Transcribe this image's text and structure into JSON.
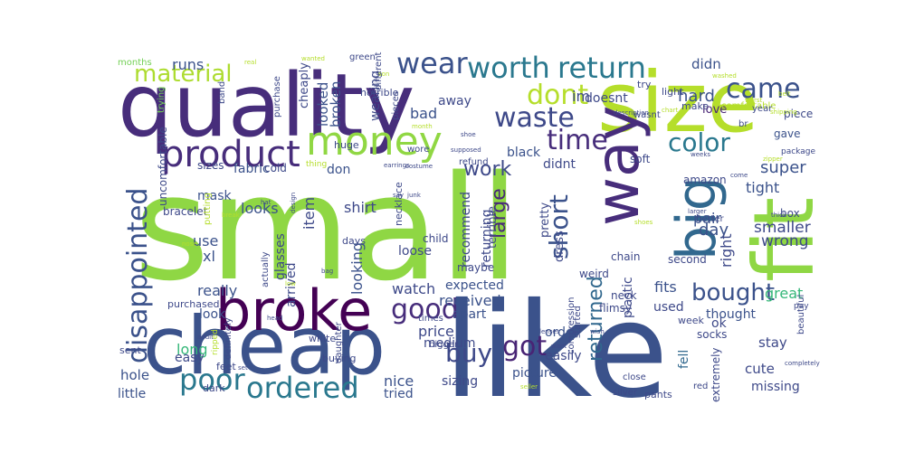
{
  "words": [
    {
      "text": "small",
      "color": "#8fd744"
    },
    {
      "text": "like",
      "color": "#3b528b"
    },
    {
      "text": "quality",
      "color": "#472d7b"
    },
    {
      "text": "size",
      "color": "#b5de2b"
    },
    {
      "text": "cheap",
      "color": "#3b528b"
    },
    {
      "text": "fit",
      "color": "#8fd744"
    },
    {
      "text": "broke",
      "color": "#440154"
    },
    {
      "text": "way",
      "color": "#472d7b"
    },
    {
      "text": "big",
      "color": "#31688e"
    },
    {
      "text": "money",
      "color": "#90d743"
    },
    {
      "text": "product",
      "color": "#472d7b"
    },
    {
      "text": "disappointed",
      "color": "#3b528b"
    },
    {
      "text": "worth",
      "color": "#2a788e"
    },
    {
      "text": "return",
      "color": "#2a788e"
    },
    {
      "text": "wear",
      "color": "#3b528b"
    },
    {
      "text": "came",
      "color": "#3b528b"
    },
    {
      "text": "material",
      "color": "#addc30"
    },
    {
      "text": "dont",
      "color": "#b5de2b"
    },
    {
      "text": "waste",
      "color": "#3e4989"
    },
    {
      "text": "time",
      "color": "#472d7b"
    },
    {
      "text": "color",
      "color": "#2a788e"
    },
    {
      "text": "good",
      "color": "#472d7b"
    },
    {
      "text": "buy",
      "color": "#3e4989"
    },
    {
      "text": "got",
      "color": "#482475"
    },
    {
      "text": "ordered",
      "color": "#2a788e"
    },
    {
      "text": "poor",
      "color": "#2a788e"
    },
    {
      "text": "bought",
      "color": "#3b528b"
    },
    {
      "text": "short",
      "color": "#3b528b"
    },
    {
      "text": "large",
      "color": "#482878"
    },
    {
      "text": "work",
      "color": "#3e4989"
    },
    {
      "text": "returned",
      "color": "#31688e"
    },
    {
      "text": "runs",
      "color": "#3b528b"
    },
    {
      "text": "months",
      "color": "#73d056"
    },
    {
      "text": "didn",
      "color": "#3b528b"
    },
    {
      "text": "im",
      "color": "#3e4989"
    },
    {
      "text": "hard",
      "color": "#3b528b"
    },
    {
      "text": "love",
      "color": "#482475"
    },
    {
      "text": "super",
      "color": "#3b528b"
    },
    {
      "text": "day",
      "color": "#3b528b"
    },
    {
      "text": "great",
      "color": "#35b779"
    },
    {
      "text": "wrong",
      "color": "#3e4989"
    },
    {
      "text": "smaller",
      "color": "#3e4989"
    },
    {
      "text": "tight",
      "color": "#3b528b"
    },
    {
      "text": "pair",
      "color": "#3b528b"
    },
    {
      "text": "right",
      "color": "#3e4989"
    },
    {
      "text": "fits",
      "color": "#3b528b"
    },
    {
      "text": "used",
      "color": "#3e4989"
    },
    {
      "text": "ok",
      "color": "#3e4989"
    },
    {
      "text": "cute",
      "color": "#3e4989"
    },
    {
      "text": "stay",
      "color": "#3e4989"
    },
    {
      "text": "fell",
      "color": "#31688e"
    },
    {
      "text": "missing",
      "color": "#3e4989"
    },
    {
      "text": "extremely",
      "color": "#3e4989"
    },
    {
      "text": "looked",
      "color": "#3b528b"
    },
    {
      "text": "broken",
      "color": "#3b528b"
    },
    {
      "text": "cheaply",
      "color": "#3e4989"
    },
    {
      "text": "wearing",
      "color": "#3e4989"
    },
    {
      "text": "bad",
      "color": "#3b528b"
    },
    {
      "text": "away",
      "color": "#3e4989"
    },
    {
      "text": "fabric",
      "color": "#3b528b"
    },
    {
      "text": "sizes",
      "color": "#3e4989"
    },
    {
      "text": "mask",
      "color": "#3b528b"
    },
    {
      "text": "looks",
      "color": "#3b528b"
    },
    {
      "text": "shirt",
      "color": "#3e4989"
    },
    {
      "text": "item",
      "color": "#3e4989"
    },
    {
      "text": "use",
      "color": "#3b528b"
    },
    {
      "text": "xl",
      "color": "#3b528b"
    },
    {
      "text": "glasses",
      "color": "#3e4989"
    },
    {
      "text": "looking",
      "color": "#3b528b"
    },
    {
      "text": "recommend",
      "color": "#3e4989"
    },
    {
      "text": "returning",
      "color": "#3e4989"
    },
    {
      "text": "terrible",
      "color": "#3e4989"
    },
    {
      "text": "pretty",
      "color": "#3e4989"
    },
    {
      "text": "dress",
      "color": "#3e4989"
    },
    {
      "text": "didnt",
      "color": "#3e4989"
    },
    {
      "text": "black",
      "color": "#3b528b"
    },
    {
      "text": "really",
      "color": "#3b528b"
    },
    {
      "text": "arrived",
      "color": "#3e4989"
    },
    {
      "text": "look",
      "color": "#3b528b"
    },
    {
      "text": "watch",
      "color": "#3e4989"
    },
    {
      "text": "received",
      "color": "#3b528b"
    },
    {
      "text": "expected",
      "color": "#3b528b"
    },
    {
      "text": "apart",
      "color": "#3b528b"
    },
    {
      "text": "price",
      "color": "#3e4989"
    },
    {
      "text": "order",
      "color": "#3b528b"
    },
    {
      "text": "medium",
      "color": "#3e4989"
    },
    {
      "text": "plastic",
      "color": "#3e4989"
    },
    {
      "text": "picture",
      "color": "#3b528b"
    },
    {
      "text": "nice",
      "color": "#3b528b"
    },
    {
      "text": "sizing",
      "color": "#3e4989"
    },
    {
      "text": "easily",
      "color": "#3e4989"
    },
    {
      "text": "tried",
      "color": "#3b528b"
    },
    {
      "text": "long",
      "color": "#35b779"
    },
    {
      "text": "easy",
      "color": "#3e4989"
    },
    {
      "text": "hole",
      "color": "#3b528b"
    },
    {
      "text": "little",
      "color": "#3b528b"
    },
    {
      "text": "loose",
      "color": "#3e4989"
    },
    {
      "text": "don",
      "color": "#3b528b"
    },
    {
      "text": "doesnt",
      "color": "#3e4989"
    },
    {
      "text": "thought",
      "color": "#3b528b"
    },
    {
      "text": "socks",
      "color": "#3e4989"
    },
    {
      "text": "cold",
      "color": "#3e4989"
    },
    {
      "text": "horrible",
      "color": "#3e4989"
    },
    {
      "text": "soft",
      "color": "#3e4989"
    },
    {
      "text": "gave",
      "color": "#3b528b"
    },
    {
      "text": "box",
      "color": "#3e4989"
    },
    {
      "text": "piece",
      "color": "#3e4989"
    },
    {
      "text": "amazon",
      "color": "#3e4989"
    },
    {
      "text": "bracelet",
      "color": "#3e4989"
    },
    {
      "text": "uncomfortable",
      "color": "#3e4989"
    },
    {
      "text": "chain",
      "color": "#3e4989"
    },
    {
      "text": "weird",
      "color": "#3e4989"
    },
    {
      "text": "child",
      "color": "#3e4989"
    },
    {
      "text": "maybe",
      "color": "#3e4989"
    },
    {
      "text": "second",
      "color": "#3e4989"
    },
    {
      "text": "neck",
      "color": "#3e4989"
    },
    {
      "text": "flimsy",
      "color": "#3e4989"
    },
    {
      "text": "week",
      "color": "#3e4989"
    },
    {
      "text": "sent",
      "color": "#3e4989"
    },
    {
      "text": "feet",
      "color": "#3e4989"
    },
    {
      "text": "white",
      "color": "#3e4989"
    },
    {
      "text": "buying",
      "color": "#3e4989"
    },
    {
      "text": "dark",
      "color": "#3e4989"
    },
    {
      "text": "purchased",
      "color": "#3e4989"
    },
    {
      "text": "pants",
      "color": "#3e4989"
    },
    {
      "text": "huge",
      "color": "#3e4989"
    },
    {
      "text": "necklace",
      "color": "#3e4989"
    },
    {
      "text": "days",
      "color": "#3e4989"
    },
    {
      "text": "try",
      "color": "#3e4989"
    },
    {
      "text": "light",
      "color": "#3e4989"
    },
    {
      "text": "make",
      "color": "#3e4989"
    },
    {
      "text": "comfortable",
      "color": "#b5de2b"
    },
    {
      "text": "green",
      "color": "#3e4989"
    },
    {
      "text": "wasnt",
      "color": "#3e4989"
    },
    {
      "text": "different",
      "color": "#3e4989"
    },
    {
      "text": "pieces",
      "color": "#3e4989"
    },
    {
      "text": "putting",
      "color": "#b5de2b"
    },
    {
      "text": "wore",
      "color": "#3e4989"
    },
    {
      "text": "refund",
      "color": "#3e4989"
    },
    {
      "text": "better",
      "color": "#3e4989"
    },
    {
      "text": "daughter",
      "color": "#3e4989"
    },
    {
      "text": "definitely",
      "color": "#3e4989"
    },
    {
      "text": "actually",
      "color": "#3e4989"
    },
    {
      "text": "compression",
      "color": "#3e4989"
    },
    {
      "text": "beautiful",
      "color": "#3e4989"
    },
    {
      "text": "trying",
      "color": "#73d056"
    },
    {
      "text": "band",
      "color": "#3e4989"
    },
    {
      "text": "purchase",
      "color": "#3e4989"
    },
    {
      "text": "times",
      "color": "#3e4989"
    },
    {
      "text": "bigger",
      "color": "#3e4989"
    },
    {
      "text": "started",
      "color": "#3e4989"
    },
    {
      "text": "close",
      "color": "#3e4989"
    },
    {
      "text": "silver",
      "color": "#3e4989"
    },
    {
      "text": "red",
      "color": "#3e4989"
    },
    {
      "text": "wanted",
      "color": "#b5de2b"
    },
    {
      "text": "real",
      "color": "#b5de2b"
    },
    {
      "text": "son",
      "color": "#b5de2b"
    },
    {
      "text": "washed",
      "color": "#b5de2b"
    },
    {
      "text": "chart",
      "color": "#b5de2b"
    },
    {
      "text": "worst",
      "color": "#b5de2b"
    },
    {
      "text": "shipping",
      "color": "#b5de2b"
    },
    {
      "text": "belt",
      "color": "#b5de2b"
    },
    {
      "text": "br",
      "color": "#3e4989"
    },
    {
      "text": "year",
      "color": "#3e4989"
    },
    {
      "text": "description",
      "color": "#3e4989"
    },
    {
      "text": "month",
      "color": "#b5de2b"
    },
    {
      "text": "shoe",
      "color": "#3e4989"
    },
    {
      "text": "supposed",
      "color": "#3e4989"
    },
    {
      "text": "earrings",
      "color": "#3e4989"
    },
    {
      "text": "costume",
      "color": "#3e4989"
    },
    {
      "text": "thing",
      "color": "#b5de2b"
    },
    {
      "text": "weeks",
      "color": "#3e4989"
    },
    {
      "text": "zipper",
      "color": "#b5de2b"
    },
    {
      "text": "package",
      "color": "#3e4989"
    },
    {
      "text": "come",
      "color": "#3e4989"
    },
    {
      "text": "design",
      "color": "#3e4989"
    },
    {
      "text": "junk",
      "color": "#3e4989"
    },
    {
      "text": "say",
      "color": "#3e4989"
    },
    {
      "text": "larger",
      "color": "#3e4989"
    },
    {
      "text": "shoes",
      "color": "#b5de2b"
    },
    {
      "text": "thick",
      "color": "#3e4989"
    },
    {
      "text": "nose",
      "color": "#b5de2b"
    },
    {
      "text": "bag",
      "color": "#3e4989"
    },
    {
      "text": "low",
      "color": "#b5de2b"
    },
    {
      "text": "head",
      "color": "#3e4989"
    },
    {
      "text": "adult",
      "color": "#3e4989"
    },
    {
      "text": "ripped",
      "color": "#b5de2b"
    },
    {
      "text": "set",
      "color": "#3e4989"
    },
    {
      "text": "wish",
      "color": "#3e4989"
    },
    {
      "text": "pay",
      "color": "#3e4989"
    },
    {
      "text": "want",
      "color": "#3e4989"
    },
    {
      "text": "lenses",
      "color": "#3e4989"
    },
    {
      "text": "seller",
      "color": "#b5de2b"
    },
    {
      "text": "completely",
      "color": "#3e4989"
    },
    {
      "text": "break",
      "color": "#b5de2b"
    },
    {
      "text": "hat",
      "color": "#3e4989"
    }
  ]
}
